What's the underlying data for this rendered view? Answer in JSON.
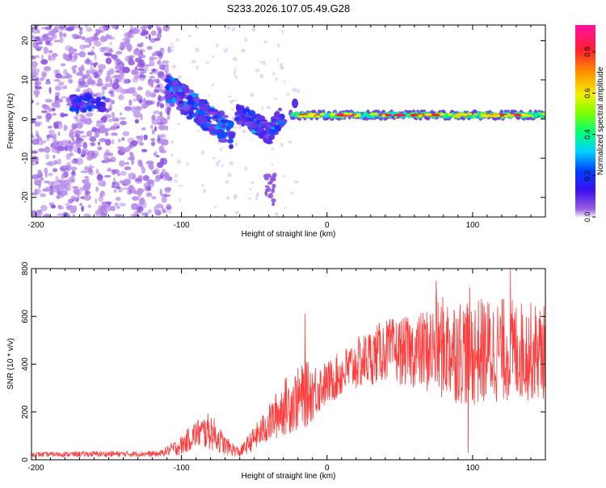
{
  "page": {
    "title": "S233.2026.107.05.49.G28"
  },
  "colors": {
    "signal": "#ff3b3b",
    "scatter_light": "#d7b8f5",
    "scatter_dark": "#7a1de0",
    "axis": "#000000"
  },
  "chart_data": [
    {
      "type": "heatmap",
      "title": "S233.2026.107.05.49.G28",
      "xlabel": "Height of straight line (km)",
      "ylabel": "Frequency (Hz)",
      "xlim": [
        -203,
        150
      ],
      "ylim": [
        -25,
        24
      ],
      "xticks": [
        -200,
        -100,
        0,
        100
      ],
      "xtick_labels": [
        "-200",
        "-100",
        "0",
        "100"
      ],
      "yticks": [
        -20,
        -10,
        0,
        10,
        20
      ],
      "ytick_labels": [
        "-20",
        "-10",
        "0",
        "10",
        "20"
      ],
      "colorbar": {
        "label": "Normalized spectral amplitude",
        "range": [
          0.0,
          0.93
        ],
        "ticks": [
          0.0,
          0.2,
          0.4,
          0.6,
          0.8
        ],
        "tick_labels": [
          "0.0",
          "0.2",
          "0.4",
          "0.6",
          "0.8"
        ],
        "colormap": "rainbow (purple → blue → cyan → green → yellow → red → magenta)"
      },
      "features": [
        {
          "x_range": [
            -203,
            -108
          ],
          "description": "noise scatter",
          "amplitude": 0.05
        },
        {
          "x_range": [
            -175,
            -155
          ],
          "freq_center": 4,
          "amplitude": 0.2
        },
        {
          "x_range": [
            -110,
            -65
          ],
          "freq_trend": [
            8,
            -2
          ],
          "amplitude": 0.2
        },
        {
          "x_range": [
            -65,
            -30
          ],
          "freq_trend": [
            2,
            -6
          ],
          "amplitude": 0.25
        },
        {
          "x_range": [
            -25,
            150
          ],
          "freq_center": 1,
          "amplitude": 0.5,
          "peak_amplitude": 0.9
        }
      ]
    },
    {
      "type": "line",
      "title": "",
      "xlabel": "Height of straight line (km)",
      "ylabel": "SNR (10 * v/v)",
      "xlim": [
        -203,
        150
      ],
      "ylim": [
        0,
        800
      ],
      "xticks": [
        -200,
        -100,
        0,
        100
      ],
      "xtick_labels": [
        "-200",
        "-100",
        "0",
        "100"
      ],
      "yticks": [
        0,
        200,
        400,
        600,
        800
      ],
      "ytick_labels": [
        "0",
        "200",
        "400",
        "600",
        "800"
      ],
      "envelope": [
        {
          "x": -203,
          "mean": 22,
          "spread": 10
        },
        {
          "x": -160,
          "mean": 24,
          "spread": 12
        },
        {
          "x": -115,
          "mean": 25,
          "spread": 12
        },
        {
          "x": -100,
          "mean": 60,
          "spread": 40
        },
        {
          "x": -90,
          "mean": 110,
          "spread": 60
        },
        {
          "x": -80,
          "mean": 120,
          "spread": 80
        },
        {
          "x": -70,
          "mean": 60,
          "spread": 40
        },
        {
          "x": -60,
          "mean": 30,
          "spread": 20
        },
        {
          "x": -50,
          "mean": 90,
          "spread": 50
        },
        {
          "x": -40,
          "mean": 150,
          "spread": 80
        },
        {
          "x": -30,
          "mean": 220,
          "spread": 120
        },
        {
          "x": -15,
          "mean": 270,
          "spread": 140
        },
        {
          "x": 0,
          "mean": 320,
          "spread": 90
        },
        {
          "x": 20,
          "mean": 400,
          "spread": 110
        },
        {
          "x": 40,
          "mean": 460,
          "spread": 130
        },
        {
          "x": 60,
          "mean": 450,
          "spread": 150
        },
        {
          "x": 80,
          "mean": 470,
          "spread": 220
        },
        {
          "x": 100,
          "mean": 450,
          "spread": 230
        },
        {
          "x": 120,
          "mean": 460,
          "spread": 220
        },
        {
          "x": 150,
          "mean": 450,
          "spread": 200
        }
      ],
      "spikes": [
        {
          "x": -15,
          "y": 610
        },
        {
          "x": 75,
          "y": 750
        },
        {
          "x": 98,
          "y": 720
        },
        {
          "x": 126,
          "y": 800
        },
        {
          "x": 97,
          "y": 30
        }
      ]
    }
  ]
}
